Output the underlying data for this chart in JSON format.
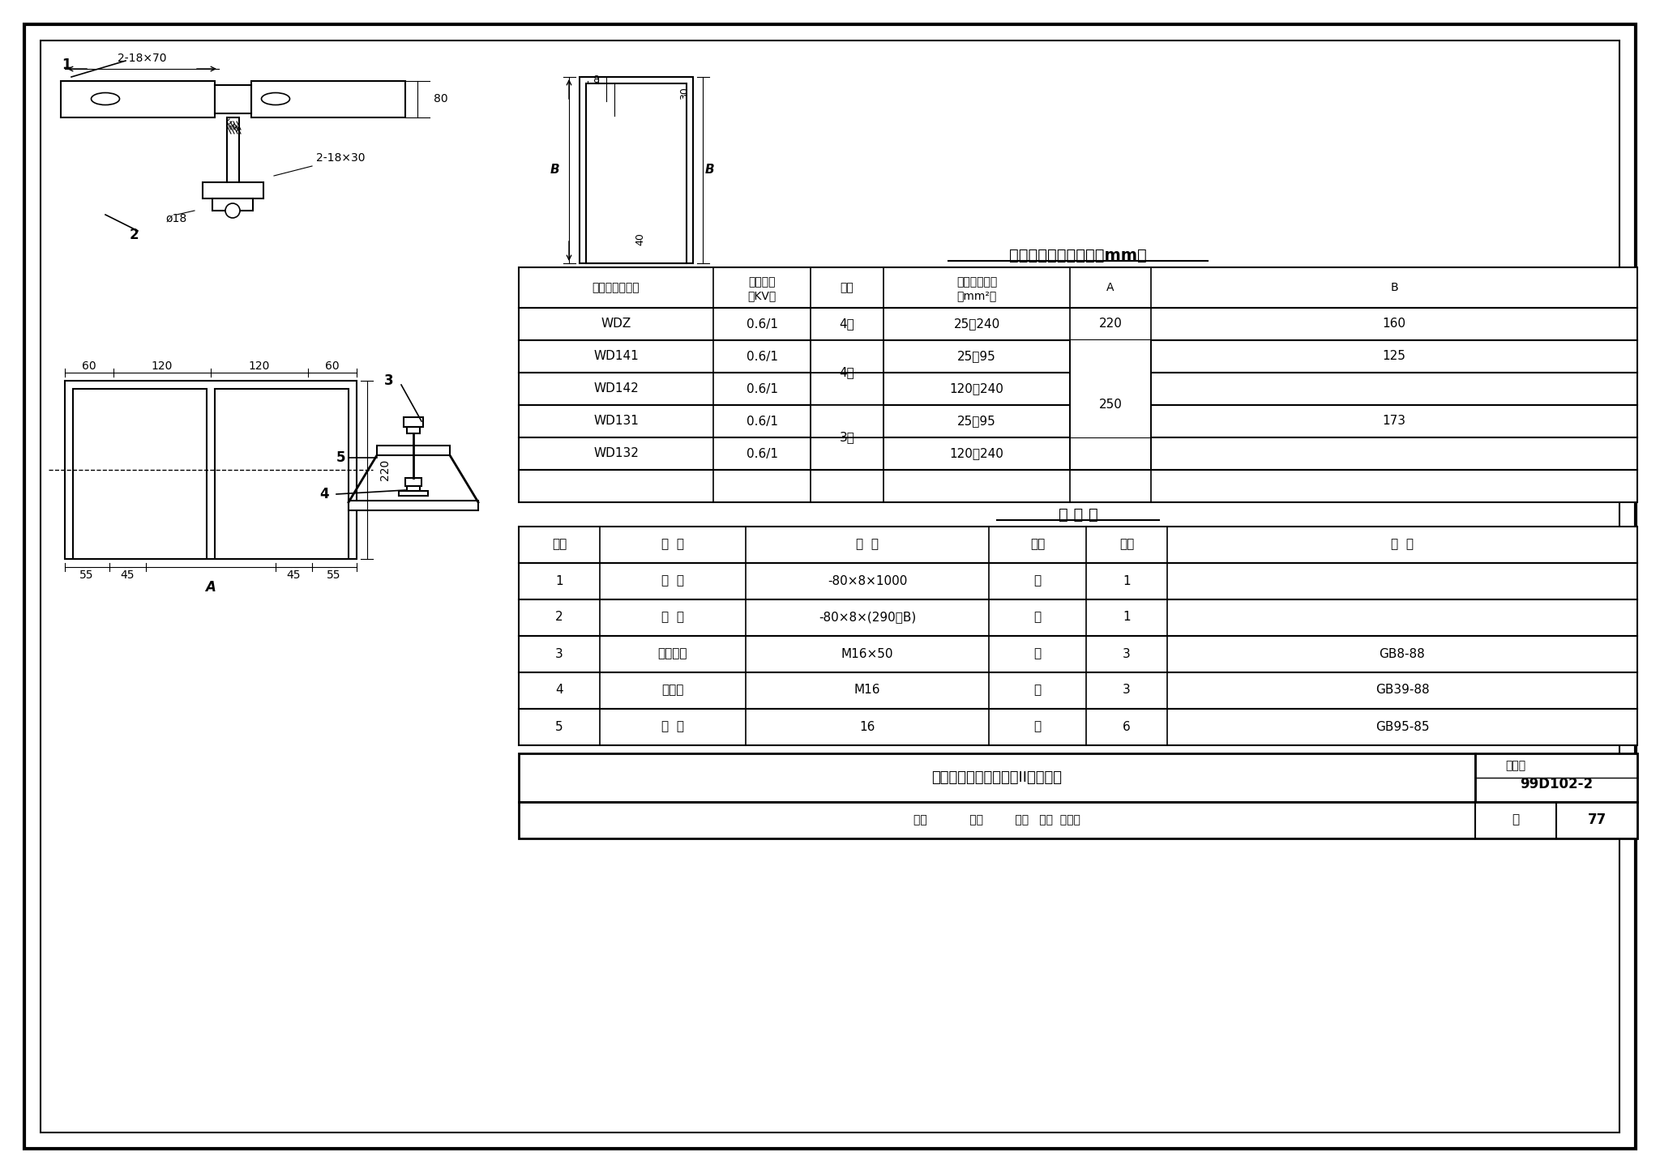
{
  "bg_color": "#f0f0f0",
  "border_color": "#000000",
  "line_color": "#000000",
  "title1": "固定支架安装尺寸表（mm）",
  "title2": "材 料 表",
  "dim_table_headers": [
    "电缆终端头型号",
    "额定电压\n（KV）",
    "类别",
    "电缆标称截面\n（mm²）",
    "A",
    "B"
  ],
  "dim_table_rows": [
    [
      "WDZ",
      "0.6/1",
      "4芯",
      "25～240",
      "220",
      "160"
    ],
    [
      "WD141",
      "0.6/1",
      "",
      "25～95",
      "",
      "125"
    ],
    [
      "WD142",
      "0.6/1",
      "4芯",
      "120～240",
      "250",
      ""
    ],
    [
      "WD131",
      "0.6/1",
      "",
      "25～95",
      "",
      "173"
    ],
    [
      "WD132",
      "0.6/1",
      "3芯",
      "120～240",
      "",
      ""
    ]
  ],
  "mat_table_headers": [
    "序号",
    "名  称",
    "规  格",
    "单位",
    "数量",
    "附  注"
  ],
  "mat_table_rows": [
    [
      "1",
      "扁  钢",
      "-80×8×1000",
      "块",
      "1",
      ""
    ],
    [
      "2",
      "扁  钢",
      "-80×8×(290＋B)",
      "块",
      "1",
      ""
    ],
    [
      "3",
      "方头螺栓",
      "M16×50",
      "个",
      "3",
      "GB8-88"
    ],
    [
      "4",
      "方螺母",
      "M16",
      "个",
      "3",
      "GB39-88"
    ],
    [
      "5",
      "垫  圈",
      "16",
      "个",
      "6",
      "GB95-85"
    ]
  ],
  "footer_title": "电缆终端头固定支架（II）制造图",
  "footer_atlas": "图集号",
  "footer_atlas_val": "99D102-2",
  "footer_review": "审核",
  "footer_check": "校对",
  "footer_design": "设计",
  "footer_page_label": "页",
  "footer_page_val": "77"
}
